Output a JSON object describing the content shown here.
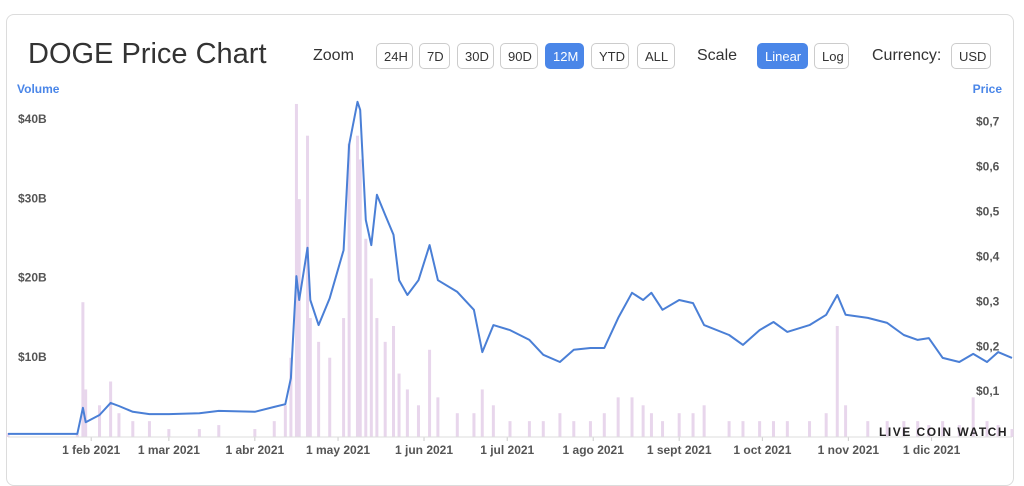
{
  "controls": {
    "zoom_label": "Zoom",
    "zoom_options": [
      "24H",
      "7D",
      "30D",
      "90D",
      "12M",
      "YTD",
      "ALL"
    ],
    "zoom_active": 4,
    "scale_label": "Scale",
    "scale_options": [
      "Linear",
      "Log"
    ],
    "scale_active": 0,
    "currency_label": "Currency:",
    "currency": "USD"
  },
  "watermark": "LIVE COIN WATCH",
  "chart_data": {
    "type": "bar-line",
    "title": "DOGE Price Chart",
    "x": [
      "2021-01-02",
      "2021-01-27",
      "2021-01-29",
      "2021-01-30",
      "2021-02-04",
      "2021-02-08",
      "2021-02-11",
      "2021-02-16",
      "2021-02-22",
      "2021-03-01",
      "2021-03-12",
      "2021-03-19",
      "2021-04-01",
      "2021-04-08",
      "2021-04-12",
      "2021-04-14",
      "2021-04-16",
      "2021-04-17",
      "2021-04-20",
      "2021-04-21",
      "2021-04-24",
      "2021-04-28",
      "2021-05-03",
      "2021-05-05",
      "2021-05-08",
      "2021-05-09",
      "2021-05-11",
      "2021-05-13",
      "2021-05-15",
      "2021-05-18",
      "2021-05-21",
      "2021-05-23",
      "2021-05-26",
      "2021-05-30",
      "2021-06-03",
      "2021-06-06",
      "2021-06-13",
      "2021-06-19",
      "2021-06-22",
      "2021-06-26",
      "2021-07-02",
      "2021-07-09",
      "2021-07-14",
      "2021-07-20",
      "2021-07-25",
      "2021-07-31",
      "2021-08-05",
      "2021-08-10",
      "2021-08-15",
      "2021-08-19",
      "2021-08-22",
      "2021-08-26",
      "2021-09-01",
      "2021-09-06",
      "2021-09-10",
      "2021-09-19",
      "2021-09-24",
      "2021-09-30",
      "2021-10-05",
      "2021-10-10",
      "2021-10-18",
      "2021-10-24",
      "2021-10-28",
      "2021-10-31",
      "2021-11-08",
      "2021-11-15",
      "2021-11-21",
      "2021-11-26",
      "2021-11-30",
      "2021-12-05",
      "2021-12-11",
      "2021-12-16",
      "2021-12-21",
      "2021-12-25",
      "2021-12-30"
    ],
    "series": [
      {
        "name": "Volume",
        "color": "#e8d6ec",
        "values": [
          0.5,
          0.3,
          17,
          6,
          4,
          7,
          3,
          2,
          2,
          1,
          1,
          1.5,
          1,
          2,
          4,
          10,
          42,
          30,
          38,
          15,
          12,
          10,
          15,
          37,
          38,
          35,
          25,
          20,
          15,
          12,
          14,
          8,
          6,
          4,
          11,
          5,
          3,
          3,
          6,
          4,
          2,
          2,
          2,
          3,
          2,
          2,
          3,
          5,
          5,
          4,
          3,
          2,
          3,
          3,
          4,
          2,
          2,
          2,
          2,
          2,
          2,
          3,
          14,
          4,
          2,
          2,
          2,
          2,
          1.5,
          2,
          1.5,
          5,
          2,
          1.5,
          1
        ]
      },
      {
        "name": "Price",
        "color": "#4a7fd6",
        "axis": "y2",
        "values": [
          0.007,
          0.007,
          0.065,
          0.033,
          0.049,
          0.076,
          0.069,
          0.056,
          0.051,
          0.051,
          0.053,
          0.058,
          0.056,
          0.067,
          0.073,
          0.131,
          0.358,
          0.305,
          0.421,
          0.305,
          0.249,
          0.309,
          0.416,
          0.65,
          0.746,
          0.728,
          0.483,
          0.427,
          0.539,
          0.494,
          0.45,
          0.349,
          0.316,
          0.349,
          0.427,
          0.349,
          0.323,
          0.283,
          0.189,
          0.249,
          0.238,
          0.216,
          0.183,
          0.167,
          0.194,
          0.198,
          0.198,
          0.265,
          0.321,
          0.305,
          0.321,
          0.283,
          0.305,
          0.298,
          0.249,
          0.227,
          0.205,
          0.238,
          0.256,
          0.234,
          0.249,
          0.272,
          0.316,
          0.272,
          0.265,
          0.254,
          0.227,
          0.216,
          0.22,
          0.176,
          0.167,
          0.185,
          0.167,
          0.189,
          0.176
        ]
      }
    ],
    "xlim": [
      "2021-01-02",
      "2021-12-30"
    ],
    "xticks": [
      {
        "value": "2021-02-01",
        "label": "1 feb 2021"
      },
      {
        "value": "2021-03-01",
        "label": "1 mar 2021"
      },
      {
        "value": "2021-04-01",
        "label": "1 abr 2021"
      },
      {
        "value": "2021-05-01",
        "label": "1 may 2021"
      },
      {
        "value": "2021-06-01",
        "label": "1 jun 2021"
      },
      {
        "value": "2021-07-01",
        "label": "1 jul 2021"
      },
      {
        "value": "2021-08-01",
        "label": "1 ago 2021"
      },
      {
        "value": "2021-09-01",
        "label": "1 sept 2021"
      },
      {
        "value": "2021-10-01",
        "label": "1 oct 2021"
      },
      {
        "value": "2021-11-01",
        "label": "1 nov 2021"
      },
      {
        "value": "2021-12-01",
        "label": "1 dic 2021"
      }
    ],
    "ylim": [
      0,
      42.5
    ],
    "yticks": [
      {
        "value": 10,
        "label": "$10B"
      },
      {
        "value": 20,
        "label": "$20B"
      },
      {
        "value": 30,
        "label": "$30B"
      },
      {
        "value": 40,
        "label": "$40B"
      }
    ],
    "y2lim": [
      0,
      0.75
    ],
    "y2ticks": [
      {
        "value": 0.1,
        "label": "$0,1"
      },
      {
        "value": 0.2,
        "label": "$0,2"
      },
      {
        "value": 0.3,
        "label": "$0,3"
      },
      {
        "value": 0.4,
        "label": "$0,4"
      },
      {
        "value": 0.5,
        "label": "$0,5"
      },
      {
        "value": 0.6,
        "label": "$0,6"
      },
      {
        "value": 0.7,
        "label": "$0,7"
      }
    ],
    "grid": false
  }
}
